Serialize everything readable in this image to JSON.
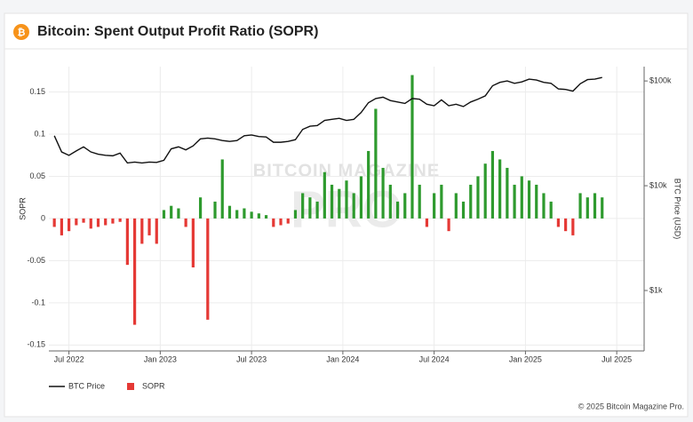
{
  "chart_data": {
    "type": "bar-line",
    "title": "Bitcoin: Spent Output Profit Ratio (SOPR)",
    "logo": "₿",
    "y_label": "SOPR",
    "y2_label": "BTC Price (USD)",
    "footer": "© 2025 Bitcoin Magazine Pro.",
    "watermark": {
      "brand": "BITCOIN MAGAZINE",
      "product": "PRO"
    },
    "grid": true,
    "legend": "bottom-left",
    "xlim": [
      2022.39,
      2025.65
    ],
    "xticks": [
      {
        "value": 2022.5,
        "label": "Jul 2022"
      },
      {
        "value": 2023.0,
        "label": "Jan 2023"
      },
      {
        "value": 2023.5,
        "label": "Jul 2023"
      },
      {
        "value": 2024.0,
        "label": "Jan 2024"
      },
      {
        "value": 2024.5,
        "label": "Jul 2024"
      },
      {
        "value": 2025.0,
        "label": "Jan 2025"
      },
      {
        "value": 2025.5,
        "label": "Jul 2025"
      }
    ],
    "ylim": [
      -0.157,
      0.18
    ],
    "yticks": [
      0.15,
      0.1,
      0.05,
      0,
      -0.05,
      -0.1,
      -0.15
    ],
    "y2scale": "log",
    "y2lim": [
      265,
      137000
    ],
    "y2ticks": [
      {
        "value": 100000,
        "label": "$100k"
      },
      {
        "value": 10000,
        "label": "$10k"
      },
      {
        "value": 1000,
        "label": "$1k"
      }
    ],
    "x": [
      2022.42,
      2022.46,
      2022.5,
      2022.54,
      2022.58,
      2022.62,
      2022.66,
      2022.7,
      2022.74,
      2022.78,
      2022.82,
      2022.86,
      2022.9,
      2022.94,
      2022.98,
      2023.02,
      2023.06,
      2023.1,
      2023.14,
      2023.18,
      2023.22,
      2023.26,
      2023.3,
      2023.34,
      2023.38,
      2023.42,
      2023.46,
      2023.5,
      2023.54,
      2023.58,
      2023.62,
      2023.66,
      2023.7,
      2023.74,
      2023.78,
      2023.82,
      2023.86,
      2023.9,
      2023.94,
      2023.98,
      2024.02,
      2024.06,
      2024.1,
      2024.14,
      2024.18,
      2024.22,
      2024.26,
      2024.3,
      2024.34,
      2024.38,
      2024.42,
      2024.46,
      2024.5,
      2024.54,
      2024.58,
      2024.62,
      2024.66,
      2024.7,
      2024.74,
      2024.78,
      2024.82,
      2024.86,
      2024.9,
      2024.94,
      2024.98,
      2025.02,
      2025.06,
      2025.1,
      2025.14,
      2025.18,
      2025.22,
      2025.26,
      2025.3,
      2025.34,
      2025.38,
      2025.42
    ],
    "series": [
      {
        "name": "BTC Price",
        "color": "#111111",
        "axis": "y2",
        "values": [
          30000,
          21000,
          19500,
          21500,
          23500,
          21000,
          20000,
          19500,
          19300,
          20500,
          16500,
          16800,
          16500,
          16800,
          16700,
          17500,
          22500,
          23500,
          22000,
          24000,
          28000,
          28500,
          28000,
          27000,
          26500,
          27000,
          30000,
          30500,
          29500,
          29200,
          26000,
          26000,
          26500,
          27500,
          34500,
          37000,
          37500,
          42000,
          43000,
          44000,
          42000,
          43000,
          50000,
          62000,
          68000,
          70000,
          65000,
          63000,
          61000,
          68000,
          67000,
          60000,
          58000,
          66000,
          58000,
          60000,
          57000,
          63000,
          67000,
          72000,
          90000,
          97000,
          100000,
          95000,
          98000,
          104000,
          102000,
          97000,
          95000,
          84000,
          83000,
          80000,
          94000,
          103000,
          104000,
          108000
        ]
      },
      {
        "name": "SOPR",
        "color": "#e53935",
        "positive_color": "#2e9a2e",
        "values": [
          -0.01,
          -0.02,
          -0.015,
          -0.008,
          -0.005,
          -0.012,
          -0.01,
          -0.008,
          -0.006,
          -0.004,
          -0.055,
          -0.126,
          -0.03,
          -0.02,
          -0.03,
          0.01,
          0.015,
          0.012,
          -0.01,
          -0.058,
          0.025,
          -0.12,
          0.02,
          0.07,
          0.015,
          0.01,
          0.012,
          0.008,
          0.006,
          0.004,
          -0.01,
          -0.008,
          -0.006,
          0.01,
          0.03,
          0.025,
          0.02,
          0.055,
          0.04,
          0.035,
          0.045,
          0.03,
          0.05,
          0.08,
          0.13,
          0.06,
          0.04,
          0.02,
          0.03,
          0.17,
          0.04,
          -0.01,
          0.03,
          0.04,
          -0.015,
          0.03,
          0.02,
          0.04,
          0.05,
          0.065,
          0.08,
          0.07,
          0.06,
          0.04,
          0.05,
          0.045,
          0.04,
          0.03,
          0.02,
          -0.01,
          -0.015,
          -0.02,
          0.03,
          0.025,
          0.03,
          0.025
        ]
      }
    ]
  }
}
